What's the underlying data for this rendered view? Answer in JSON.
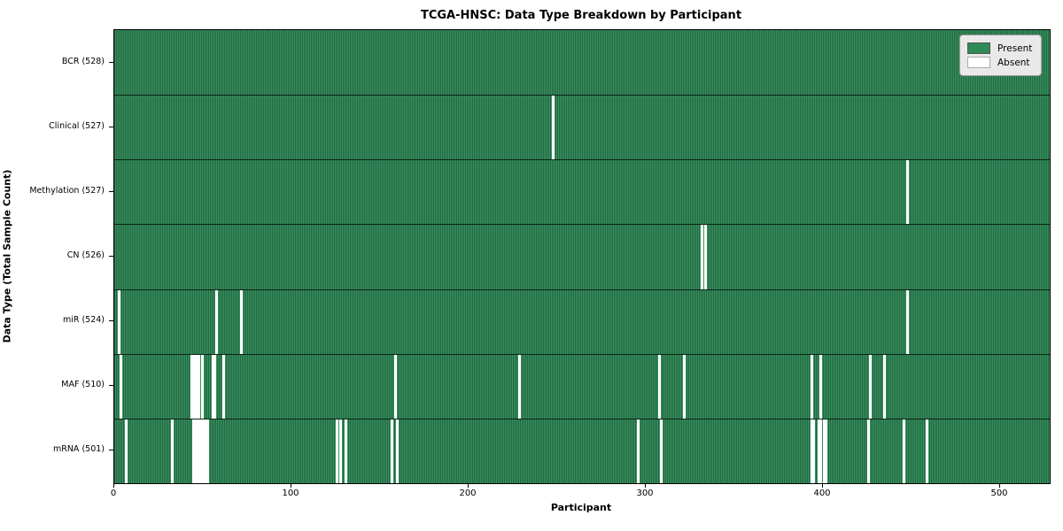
{
  "chart_data": {
    "type": "heatmap",
    "title": "TCGA-HNSC: Data Type Breakdown by Participant",
    "xlabel": "Participant",
    "ylabel": "Data Type (Total Sample Count)",
    "n_participants": 528,
    "x_ticks": [
      0,
      100,
      200,
      300,
      400,
      500
    ],
    "grid": false,
    "legend_position": "upper right",
    "colors": {
      "present": "#2e8b57",
      "absent": "#ffffff"
    },
    "legend": [
      {
        "label": "Present",
        "color": "#2e8b57"
      },
      {
        "label": "Absent",
        "color": "#ffffff"
      }
    ],
    "rows": [
      {
        "label": "BCR (528)",
        "data_type": "BCR",
        "present_count": 528,
        "absent_participants": []
      },
      {
        "label": "Clinical (527)",
        "data_type": "Clinical",
        "present_count": 527,
        "absent_participants": [
          247
        ]
      },
      {
        "label": "Methylation (527)",
        "data_type": "Methylation",
        "present_count": 527,
        "absent_participants": [
          447
        ]
      },
      {
        "label": "CN (526)",
        "data_type": "CN",
        "present_count": 526,
        "absent_participants": [
          331,
          333
        ]
      },
      {
        "label": "miR (524)",
        "data_type": "miR",
        "present_count": 524,
        "absent_participants": [
          2,
          57,
          71,
          447
        ]
      },
      {
        "label": "MAF (510)",
        "data_type": "MAF",
        "present_count": 510,
        "absent_participants": [
          3,
          43,
          44,
          45,
          46,
          47,
          49,
          55,
          56,
          61,
          158,
          228,
          307,
          321,
          393,
          398,
          426,
          434
        ]
      },
      {
        "label": "mRNA (501)",
        "data_type": "mRNA",
        "present_count": 501,
        "absent_participants": [
          6,
          32,
          44,
          45,
          46,
          47,
          48,
          49,
          50,
          51,
          52,
          125,
          127,
          130,
          156,
          159,
          295,
          308,
          393,
          394,
          397,
          398,
          400,
          401,
          425,
          445,
          458
        ]
      }
    ]
  }
}
